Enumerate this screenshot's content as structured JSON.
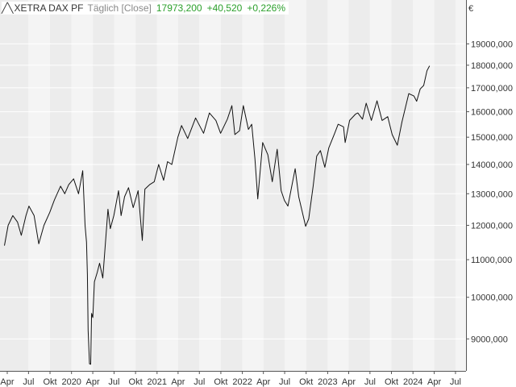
{
  "legend": {
    "glyph": "╱╲",
    "name": "XETRA DAX PF",
    "frequency": "Täglich [Close]",
    "last_close": "17973,200",
    "change": "+40,520",
    "change_pct": "+0,226%",
    "positive_color": "#2ca02c"
  },
  "chart_data": {
    "type": "line",
    "title": "",
    "y_unit": "€",
    "y_scale": "log",
    "ylim": [
      8300,
      20300
    ],
    "grid": true,
    "x_tick_labels": [
      "Apr",
      "Jul",
      "Okt",
      "2020",
      "Apr",
      "Jul",
      "Okt",
      "2021",
      "Apr",
      "Jul",
      "Okt",
      "2022",
      "Apr",
      "Jul",
      "Okt",
      "2023",
      "Apr",
      "Jul",
      "Okt",
      "2024",
      "Apr",
      "Jul"
    ],
    "y_tick_labels": [
      "19000,000",
      "18000,000",
      "17000,000",
      "16000,000",
      "15000,000",
      "14000,000",
      "13000,000",
      "12000,000",
      "11000,000",
      "10000,000",
      "9000,000"
    ],
    "y_ticks": [
      19000,
      18000,
      17000,
      16000,
      15000,
      14000,
      13000,
      12000,
      11000,
      10000,
      9000
    ],
    "series": [
      {
        "name": "XETRA DAX PF",
        "points": [
          [
            "2019-03-20",
            11400
          ],
          [
            "2019-04-05",
            12000
          ],
          [
            "2019-04-25",
            12300
          ],
          [
            "2019-05-15",
            12100
          ],
          [
            "2019-05-31",
            11700
          ],
          [
            "2019-06-20",
            12300
          ],
          [
            "2019-07-03",
            12600
          ],
          [
            "2019-07-25",
            12300
          ],
          [
            "2019-08-14",
            11450
          ],
          [
            "2019-09-05",
            12000
          ],
          [
            "2019-09-30",
            12400
          ],
          [
            "2019-10-20",
            12800
          ],
          [
            "2019-11-15",
            13250
          ],
          [
            "2019-12-03",
            13000
          ],
          [
            "2019-12-20",
            13300
          ],
          [
            "2020-01-10",
            13500
          ],
          [
            "2020-01-31",
            13000
          ],
          [
            "2020-02-18",
            13780
          ],
          [
            "2020-02-28",
            12000
          ],
          [
            "2020-03-05",
            11500
          ],
          [
            "2020-03-09",
            10600
          ],
          [
            "2020-03-12",
            9200
          ],
          [
            "2020-03-18",
            8450
          ],
          [
            "2020-03-23",
            8440
          ],
          [
            "2020-03-27",
            9600
          ],
          [
            "2020-04-01",
            9500
          ],
          [
            "2020-04-08",
            10400
          ],
          [
            "2020-04-20",
            10650
          ],
          [
            "2020-04-30",
            10900
          ],
          [
            "2020-05-14",
            10500
          ],
          [
            "2020-06-05",
            12500
          ],
          [
            "2020-06-15",
            11900
          ],
          [
            "2020-06-30",
            12300
          ],
          [
            "2020-07-20",
            13100
          ],
          [
            "2020-07-31",
            12300
          ],
          [
            "2020-08-15",
            12900
          ],
          [
            "2020-09-01",
            13200
          ],
          [
            "2020-09-21",
            12550
          ],
          [
            "2020-10-12",
            13100
          ],
          [
            "2020-10-30",
            11550
          ],
          [
            "2020-11-10",
            13150
          ],
          [
            "2020-11-30",
            13300
          ],
          [
            "2020-12-20",
            13400
          ],
          [
            "2021-01-08",
            14000
          ],
          [
            "2021-01-29",
            13450
          ],
          [
            "2021-02-15",
            14100
          ],
          [
            "2021-03-05",
            14000
          ],
          [
            "2021-03-31",
            15000
          ],
          [
            "2021-04-16",
            15450
          ],
          [
            "2021-05-12",
            14950
          ],
          [
            "2021-06-15",
            15750
          ],
          [
            "2021-07-19",
            15150
          ],
          [
            "2021-08-13",
            15950
          ],
          [
            "2021-09-10",
            15650
          ],
          [
            "2021-09-30",
            15150
          ],
          [
            "2021-10-29",
            15700
          ],
          [
            "2021-11-17",
            16250
          ],
          [
            "2021-11-30",
            15100
          ],
          [
            "2021-12-20",
            15250
          ],
          [
            "2022-01-05",
            16250
          ],
          [
            "2022-01-27",
            15300
          ],
          [
            "2022-02-10",
            15500
          ],
          [
            "2022-02-24",
            14200
          ],
          [
            "2022-03-08",
            12830
          ],
          [
            "2022-03-29",
            14800
          ],
          [
            "2022-04-20",
            14350
          ],
          [
            "2022-05-09",
            13400
          ],
          [
            "2022-05-30",
            14550
          ],
          [
            "2022-06-16",
            13100
          ],
          [
            "2022-06-30",
            12780
          ],
          [
            "2022-07-15",
            12600
          ],
          [
            "2022-08-15",
            13850
          ],
          [
            "2022-08-30",
            12900
          ],
          [
            "2022-09-29",
            11970
          ],
          [
            "2022-10-12",
            12200
          ],
          [
            "2022-10-31",
            13250
          ],
          [
            "2022-11-15",
            14300
          ],
          [
            "2022-12-01",
            14500
          ],
          [
            "2022-12-20",
            13900
          ],
          [
            "2023-01-06",
            14600
          ],
          [
            "2023-01-31",
            15150
          ],
          [
            "2023-02-15",
            15500
          ],
          [
            "2023-03-10",
            15400
          ],
          [
            "2023-03-17",
            14800
          ],
          [
            "2023-04-05",
            15650
          ],
          [
            "2023-04-30",
            15900
          ],
          [
            "2023-05-10",
            15950
          ],
          [
            "2023-05-30",
            15700
          ],
          [
            "2023-06-15",
            16350
          ],
          [
            "2023-07-07",
            15650
          ],
          [
            "2023-07-31",
            16450
          ],
          [
            "2023-08-22",
            15650
          ],
          [
            "2023-09-15",
            15800
          ],
          [
            "2023-10-04",
            15100
          ],
          [
            "2023-10-26",
            14700
          ],
          [
            "2023-11-15",
            15600
          ],
          [
            "2023-12-14",
            16750
          ],
          [
            "2024-01-05",
            16650
          ],
          [
            "2024-01-17",
            16430
          ],
          [
            "2024-02-01",
            16950
          ],
          [
            "2024-02-16",
            17100
          ],
          [
            "2024-03-01",
            17750
          ],
          [
            "2024-03-12",
            17973
          ]
        ]
      }
    ]
  }
}
